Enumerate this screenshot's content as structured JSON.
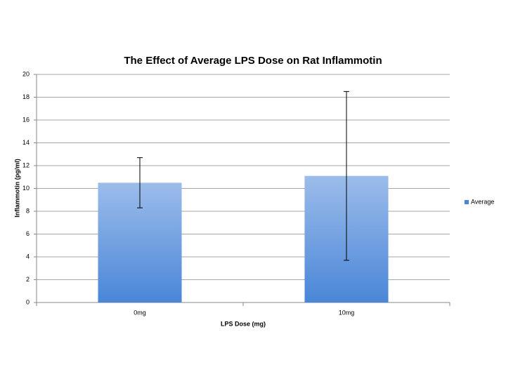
{
  "chart_data": {
    "type": "bar",
    "title": "The Effect of Average LPS Dose on Rat Inflammotin",
    "x_label": "LPS Dose (mg)",
    "y_label": "Inflammotin (pg/ml)",
    "categories": [
      "0mg",
      "10mg"
    ],
    "series": [
      {
        "name": "Average",
        "color": "#4a86d8",
        "values": [
          10.5,
          11.1
        ],
        "errors": [
          2.2,
          7.4
        ]
      }
    ],
    "ylim": [
      0,
      20
    ],
    "yticks": [
      0,
      2,
      4,
      6,
      8,
      10,
      12,
      14,
      16,
      18,
      20
    ],
    "grid": true,
    "legend": "right"
  }
}
